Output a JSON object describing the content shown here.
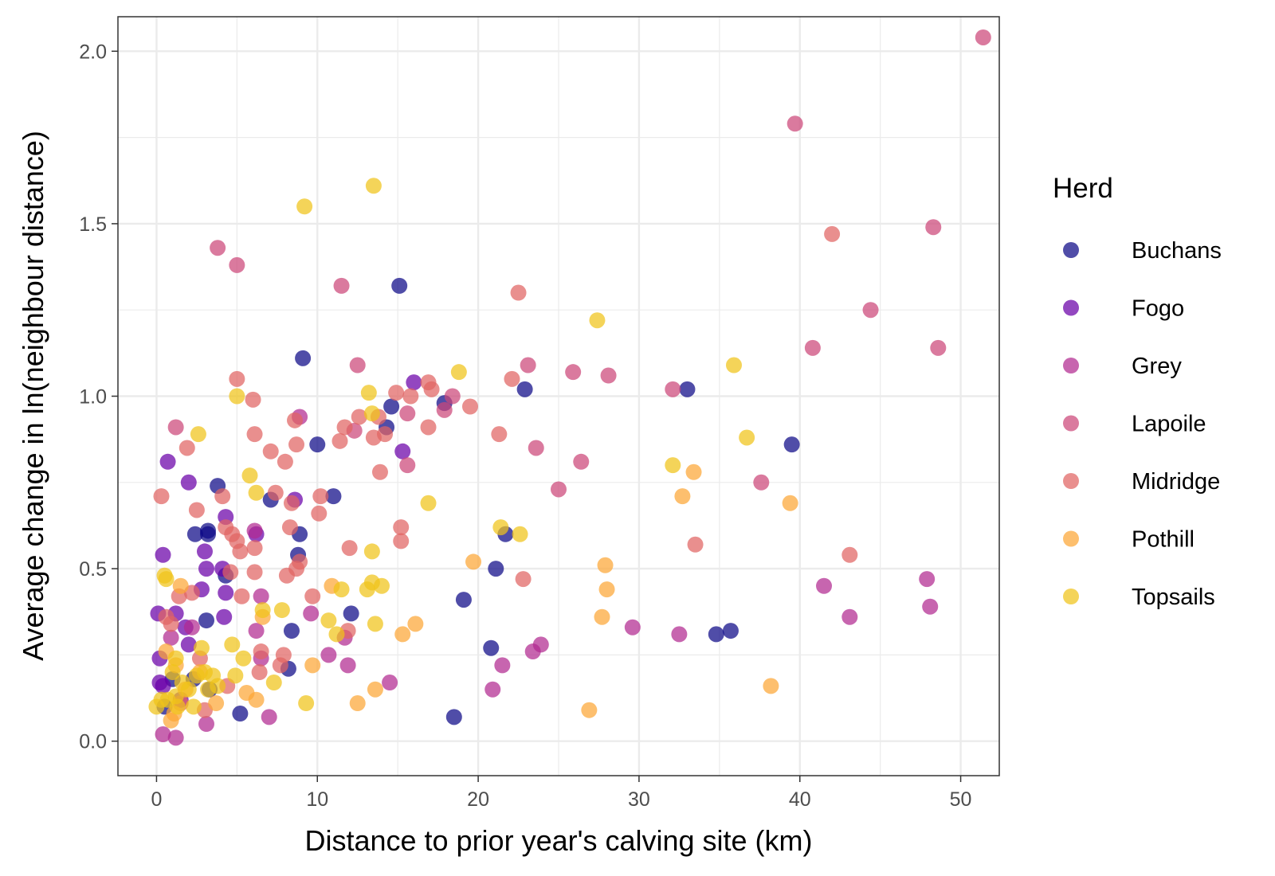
{
  "chart_data": {
    "type": "scatter",
    "title": "",
    "xlabel": "Distance to prior year's calving site (km)",
    "ylabel": "Average change in ln(neighbour distance)",
    "xlim": [
      -2.4,
      52.4
    ],
    "ylim": [
      -0.1,
      2.1
    ],
    "x_ticks": [
      0,
      10,
      20,
      30,
      40,
      50
    ],
    "y_ticks": [
      0.0,
      0.5,
      1.0,
      1.5,
      2.0
    ],
    "x_tick_labels": [
      "0",
      "10",
      "20",
      "30",
      "40",
      "50"
    ],
    "y_tick_labels": [
      "0.0",
      "0.5",
      "1.0",
      "1.5",
      "2.0"
    ],
    "grid": true,
    "legend": {
      "title": "Herd",
      "position": "right"
    },
    "series": [
      {
        "name": "Buchans",
        "color": "#0d0887",
        "points": [
          [
            15.1,
            1.32
          ],
          [
            9.1,
            1.11
          ],
          [
            22.9,
            1.02
          ],
          [
            33.0,
            1.02
          ],
          [
            39.5,
            0.86
          ],
          [
            17.9,
            0.98
          ],
          [
            10.0,
            0.86
          ],
          [
            14.3,
            0.91
          ],
          [
            14.6,
            0.97
          ],
          [
            3.8,
            0.74
          ],
          [
            2.4,
            0.6
          ],
          [
            3.2,
            0.6
          ],
          [
            3.2,
            0.61
          ],
          [
            7.1,
            0.7
          ],
          [
            11.0,
            0.71
          ],
          [
            8.9,
            0.6
          ],
          [
            8.8,
            0.54
          ],
          [
            4.3,
            0.48
          ],
          [
            21.7,
            0.6
          ],
          [
            21.1,
            0.5
          ],
          [
            19.1,
            0.41
          ],
          [
            12.1,
            0.37
          ],
          [
            8.4,
            0.32
          ],
          [
            3.1,
            0.35
          ],
          [
            20.8,
            0.27
          ],
          [
            34.8,
            0.31
          ],
          [
            35.7,
            0.32
          ],
          [
            8.2,
            0.21
          ],
          [
            18.5,
            0.07
          ],
          [
            5.2,
            0.08
          ],
          [
            3.3,
            0.15
          ],
          [
            1.0,
            0.18
          ],
          [
            2.3,
            0.18
          ],
          [
            0.5,
            0.1
          ]
        ]
      },
      {
        "name": "Fogo",
        "color": "#6a00a8",
        "points": [
          [
            15.3,
            0.84
          ],
          [
            16.0,
            1.04
          ],
          [
            0.7,
            0.81
          ],
          [
            2.0,
            0.75
          ],
          [
            4.3,
            0.65
          ],
          [
            6.2,
            0.6
          ],
          [
            8.6,
            0.7
          ],
          [
            3.0,
            0.55
          ],
          [
            3.1,
            0.5
          ],
          [
            4.1,
            0.5
          ],
          [
            2.8,
            0.44
          ],
          [
            0.4,
            0.54
          ],
          [
            4.3,
            0.43
          ],
          [
            4.2,
            0.36
          ],
          [
            1.2,
            0.37
          ],
          [
            0.1,
            0.37
          ],
          [
            1.8,
            0.33
          ],
          [
            2.0,
            0.28
          ],
          [
            0.2,
            0.24
          ],
          [
            0.2,
            0.17
          ],
          [
            0.4,
            0.16
          ],
          [
            1.5,
            0.12
          ]
        ]
      },
      {
        "name": "Grey",
        "color": "#b12a90",
        "points": [
          [
            8.9,
            0.94
          ],
          [
            6.1,
            0.61
          ],
          [
            6.5,
            0.42
          ],
          [
            6.2,
            0.32
          ],
          [
            9.6,
            0.37
          ],
          [
            10.7,
            0.25
          ],
          [
            11.7,
            0.3
          ],
          [
            11.9,
            0.22
          ],
          [
            14.5,
            0.17
          ],
          [
            23.4,
            0.26
          ],
          [
            23.9,
            0.28
          ],
          [
            21.5,
            0.22
          ],
          [
            20.9,
            0.15
          ],
          [
            29.6,
            0.33
          ],
          [
            32.5,
            0.31
          ],
          [
            41.5,
            0.45
          ],
          [
            43.1,
            0.36
          ],
          [
            47.9,
            0.47
          ],
          [
            48.1,
            0.39
          ],
          [
            7.0,
            0.07
          ],
          [
            6.5,
            0.24
          ],
          [
            3.1,
            0.05
          ],
          [
            0.4,
            0.02
          ],
          [
            1.2,
            0.01
          ],
          [
            2.2,
            0.33
          ],
          [
            0.9,
            0.3
          ]
        ]
      },
      {
        "name": "Lapoile",
        "color": "#cc4778",
        "points": [
          [
            51.4,
            2.04
          ],
          [
            39.7,
            1.79
          ],
          [
            48.3,
            1.49
          ],
          [
            44.4,
            1.25
          ],
          [
            40.8,
            1.14
          ],
          [
            48.6,
            1.14
          ],
          [
            32.1,
            1.02
          ],
          [
            28.1,
            1.06
          ],
          [
            25.9,
            1.07
          ],
          [
            23.1,
            1.09
          ],
          [
            12.5,
            1.09
          ],
          [
            11.5,
            1.32
          ],
          [
            3.8,
            1.43
          ],
          [
            5.0,
            1.38
          ],
          [
            23.6,
            0.85
          ],
          [
            26.4,
            0.81
          ],
          [
            25.0,
            0.73
          ],
          [
            37.6,
            0.75
          ],
          [
            18.4,
            1.0
          ],
          [
            17.9,
            0.96
          ],
          [
            15.6,
            0.95
          ],
          [
            15.6,
            0.8
          ],
          [
            12.3,
            0.9
          ],
          [
            1.2,
            0.91
          ]
        ]
      },
      {
        "name": "Midridge",
        "color": "#e16462",
        "points": [
          [
            42.0,
            1.47
          ],
          [
            22.5,
            1.3
          ],
          [
            22.1,
            1.05
          ],
          [
            19.5,
            0.97
          ],
          [
            16.9,
            1.04
          ],
          [
            17.1,
            1.02
          ],
          [
            15.8,
            1.0
          ],
          [
            14.9,
            1.01
          ],
          [
            14.2,
            0.89
          ],
          [
            13.8,
            0.94
          ],
          [
            12.6,
            0.94
          ],
          [
            11.7,
            0.91
          ],
          [
            11.4,
            0.87
          ],
          [
            13.5,
            0.88
          ],
          [
            13.9,
            0.78
          ],
          [
            16.9,
            0.91
          ],
          [
            21.3,
            0.89
          ],
          [
            5.0,
            1.05
          ],
          [
            6.0,
            0.99
          ],
          [
            6.1,
            0.89
          ],
          [
            7.1,
            0.84
          ],
          [
            8.0,
            0.81
          ],
          [
            8.6,
            0.93
          ],
          [
            8.7,
            0.86
          ],
          [
            1.9,
            0.85
          ],
          [
            0.3,
            0.71
          ],
          [
            2.5,
            0.67
          ],
          [
            4.1,
            0.71
          ],
          [
            4.3,
            0.62
          ],
          [
            6.1,
            0.56
          ],
          [
            5.0,
            0.58
          ],
          [
            5.2,
            0.55
          ],
          [
            6.1,
            0.49
          ],
          [
            7.4,
            0.72
          ],
          [
            8.3,
            0.62
          ],
          [
            8.4,
            0.69
          ],
          [
            8.7,
            0.5
          ],
          [
            8.9,
            0.52
          ],
          [
            8.1,
            0.48
          ],
          [
            10.2,
            0.71
          ],
          [
            10.1,
            0.66
          ],
          [
            12.0,
            0.56
          ],
          [
            15.2,
            0.62
          ],
          [
            15.2,
            0.58
          ],
          [
            9.7,
            0.42
          ],
          [
            5.3,
            0.42
          ],
          [
            4.7,
            0.6
          ],
          [
            4.6,
            0.49
          ],
          [
            6.5,
            0.26
          ],
          [
            7.9,
            0.25
          ],
          [
            7.7,
            0.22
          ],
          [
            6.4,
            0.2
          ],
          [
            4.4,
            0.16
          ],
          [
            2.7,
            0.24
          ],
          [
            2.2,
            0.43
          ],
          [
            1.4,
            0.42
          ],
          [
            0.6,
            0.36
          ],
          [
            0.9,
            0.34
          ],
          [
            43.1,
            0.54
          ],
          [
            22.8,
            0.47
          ],
          [
            33.5,
            0.57
          ],
          [
            11.9,
            0.32
          ],
          [
            1.5,
            0.11
          ],
          [
            3.0,
            0.09
          ]
        ]
      },
      {
        "name": "Pothill",
        "color": "#fca636",
        "points": [
          [
            39.4,
            0.69
          ],
          [
            33.4,
            0.78
          ],
          [
            32.7,
            0.71
          ],
          [
            27.9,
            0.51
          ],
          [
            28.0,
            0.44
          ],
          [
            27.7,
            0.36
          ],
          [
            19.7,
            0.52
          ],
          [
            16.1,
            0.34
          ],
          [
            15.3,
            0.31
          ],
          [
            10.9,
            0.45
          ],
          [
            9.7,
            0.22
          ],
          [
            13.6,
            0.15
          ],
          [
            12.5,
            0.11
          ],
          [
            26.9,
            0.09
          ],
          [
            38.2,
            0.16
          ],
          [
            6.6,
            0.36
          ],
          [
            5.6,
            0.14
          ],
          [
            6.2,
            0.12
          ],
          [
            2.7,
            0.2
          ],
          [
            1.8,
            0.15
          ],
          [
            1.5,
            0.45
          ],
          [
            0.6,
            0.26
          ],
          [
            1.2,
            0.22
          ],
          [
            0.9,
            0.06
          ],
          [
            1.1,
            0.08
          ],
          [
            3.7,
            0.11
          ]
        ]
      },
      {
        "name": "Topsails",
        "color": "#f0c419",
        "points": [
          [
            13.5,
            1.61
          ],
          [
            9.2,
            1.55
          ],
          [
            27.4,
            1.22
          ],
          [
            35.9,
            1.09
          ],
          [
            18.8,
            1.07
          ],
          [
            13.2,
            1.01
          ],
          [
            13.4,
            0.95
          ],
          [
            5.0,
            1.0
          ],
          [
            2.6,
            0.89
          ],
          [
            36.7,
            0.88
          ],
          [
            32.1,
            0.8
          ],
          [
            5.8,
            0.77
          ],
          [
            6.2,
            0.72
          ],
          [
            16.9,
            0.69
          ],
          [
            21.4,
            0.62
          ],
          [
            22.6,
            0.6
          ],
          [
            13.4,
            0.55
          ],
          [
            0.5,
            0.48
          ],
          [
            0.6,
            0.47
          ],
          [
            11.5,
            0.44
          ],
          [
            13.1,
            0.44
          ],
          [
            13.4,
            0.46
          ],
          [
            14.0,
            0.45
          ],
          [
            13.6,
            0.34
          ],
          [
            10.7,
            0.35
          ],
          [
            11.2,
            0.31
          ],
          [
            7.8,
            0.38
          ],
          [
            6.6,
            0.38
          ],
          [
            4.7,
            0.28
          ],
          [
            3.5,
            0.19
          ],
          [
            3.0,
            0.2
          ],
          [
            2.5,
            0.19
          ],
          [
            1.2,
            0.24
          ],
          [
            1.2,
            0.13
          ],
          [
            1.3,
            0.1
          ],
          [
            0.7,
            0.12
          ],
          [
            0.0,
            0.1
          ],
          [
            5.4,
            0.24
          ],
          [
            7.3,
            0.17
          ],
          [
            9.3,
            0.11
          ],
          [
            2.8,
            0.27
          ],
          [
            3.8,
            0.16
          ],
          [
            2.0,
            0.15
          ],
          [
            1.6,
            0.17
          ],
          [
            2.3,
            0.1
          ],
          [
            4.9,
            0.19
          ],
          [
            0.3,
            0.12
          ],
          [
            1.0,
            0.2
          ],
          [
            3.2,
            0.15
          ]
        ]
      }
    ]
  }
}
